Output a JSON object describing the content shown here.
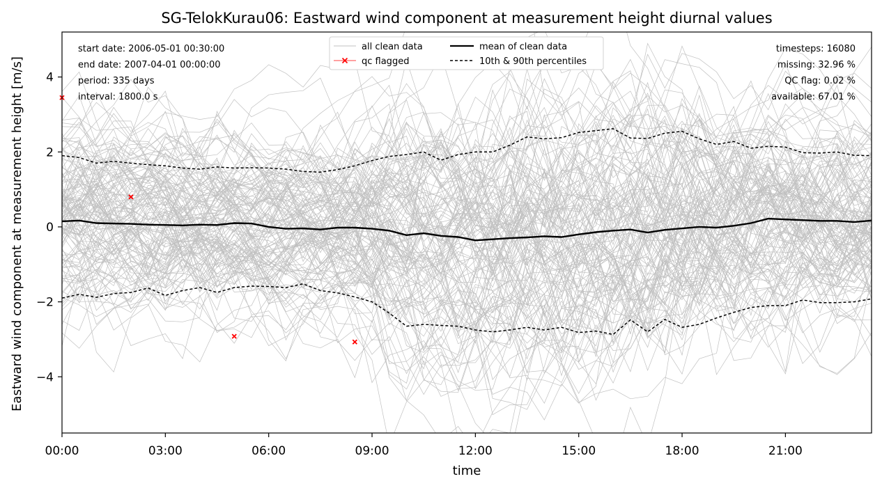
{
  "chart_data": {
    "type": "line",
    "title": "SG-TelokKurau06: Eastward wind component at measurement height diurnal values",
    "xlabel": "time",
    "ylabel": "Eastward wind component at measurement height [m/s]",
    "x_ticks": [
      "00:00",
      "03:00",
      "06:00",
      "09:00",
      "12:00",
      "15:00",
      "18:00",
      "21:00"
    ],
    "y_ticks": [
      4,
      2,
      0,
      -2,
      -4
    ],
    "y_tick_labels": [
      "4",
      "2",
      "0",
      "−2",
      "−4"
    ],
    "xlim_hours": [
      0,
      23.5
    ],
    "ylim": [
      -5.5,
      5.2
    ],
    "grid": false,
    "stats_left": [
      "start date: 2006-05-01 00:30:00",
      "end date: 2007-04-01 00:00:00",
      "period: 335 days",
      "interval: 1800.0 s"
    ],
    "stats_right": [
      "timesteps: 16080",
      "missing: 32.96 %",
      "QC flag: 0.02 %",
      "available: 67.01 %"
    ],
    "legend": {
      "placement": "top-center",
      "entries": [
        "all clean data",
        "qc flagged",
        "mean of clean data",
        "10th & 90th percentiles"
      ]
    },
    "x_hours": [
      0,
      0.5,
      1,
      1.5,
      2,
      2.5,
      3,
      3.5,
      4,
      4.5,
      5,
      5.5,
      6,
      6.5,
      7,
      7.5,
      8,
      8.5,
      9,
      9.5,
      10,
      10.5,
      11,
      11.5,
      12,
      12.5,
      13,
      13.5,
      14,
      14.5,
      15,
      15.5,
      16,
      16.5,
      17,
      17.5,
      18,
      18.5,
      19,
      19.5,
      20,
      20.5,
      21,
      21.5,
      22,
      22.5,
      23,
      23.5
    ],
    "series": [
      {
        "name": "mean of clean data",
        "values": [
          0.15,
          0.17,
          0.1,
          0.09,
          0.08,
          0.06,
          0.05,
          0.04,
          0.06,
          0.05,
          0.1,
          0.09,
          0.0,
          -0.05,
          -0.04,
          -0.07,
          -0.02,
          -0.02,
          -0.05,
          -0.1,
          -0.22,
          -0.17,
          -0.24,
          -0.27,
          -0.36,
          -0.33,
          -0.3,
          -0.28,
          -0.25,
          -0.27,
          -0.2,
          -0.14,
          -0.1,
          -0.07,
          -0.15,
          -0.08,
          -0.04,
          0.0,
          -0.02,
          0.03,
          0.1,
          0.22,
          0.2,
          0.18,
          0.16,
          0.16,
          0.13,
          0.17
        ]
      },
      {
        "name": "10th & 90th percentiles",
        "upper": [
          1.9,
          1.85,
          1.7,
          1.75,
          1.7,
          1.66,
          1.63,
          1.57,
          1.54,
          1.6,
          1.57,
          1.58,
          1.57,
          1.54,
          1.48,
          1.46,
          1.53,
          1.63,
          1.77,
          1.88,
          1.93,
          2.0,
          1.78,
          1.93,
          2.0,
          2.0,
          2.18,
          2.4,
          2.35,
          2.38,
          2.52,
          2.57,
          2.62,
          2.37,
          2.36,
          2.5,
          2.55,
          2.35,
          2.2,
          2.28,
          2.1,
          2.15,
          2.13,
          1.98,
          1.97,
          2.0,
          1.91,
          1.9
        ],
        "lower": [
          -1.9,
          -1.8,
          -1.88,
          -1.78,
          -1.75,
          -1.63,
          -1.83,
          -1.7,
          -1.62,
          -1.75,
          -1.62,
          -1.58,
          -1.59,
          -1.62,
          -1.52,
          -1.7,
          -1.76,
          -1.87,
          -2.0,
          -2.3,
          -2.65,
          -2.6,
          -2.63,
          -2.65,
          -2.75,
          -2.8,
          -2.75,
          -2.68,
          -2.75,
          -2.68,
          -2.82,
          -2.78,
          -2.87,
          -2.48,
          -2.8,
          -2.47,
          -2.68,
          -2.6,
          -2.43,
          -2.28,
          -2.15,
          -2.1,
          -2.1,
          -1.95,
          -2.02,
          -2.02,
          -2.0,
          -1.92
        ]
      },
      {
        "name": "qc flagged",
        "points": [
          [
            0,
            3.45
          ],
          [
            2,
            0.8
          ],
          [
            5,
            -2.92
          ],
          [
            8.5,
            -3.07
          ]
        ]
      }
    ],
    "clean_data_lines": 140,
    "colors": {
      "clean": "#c0c0c0",
      "mean": "#000000",
      "percentile": "#000000",
      "qc": "#ff0000"
    }
  }
}
